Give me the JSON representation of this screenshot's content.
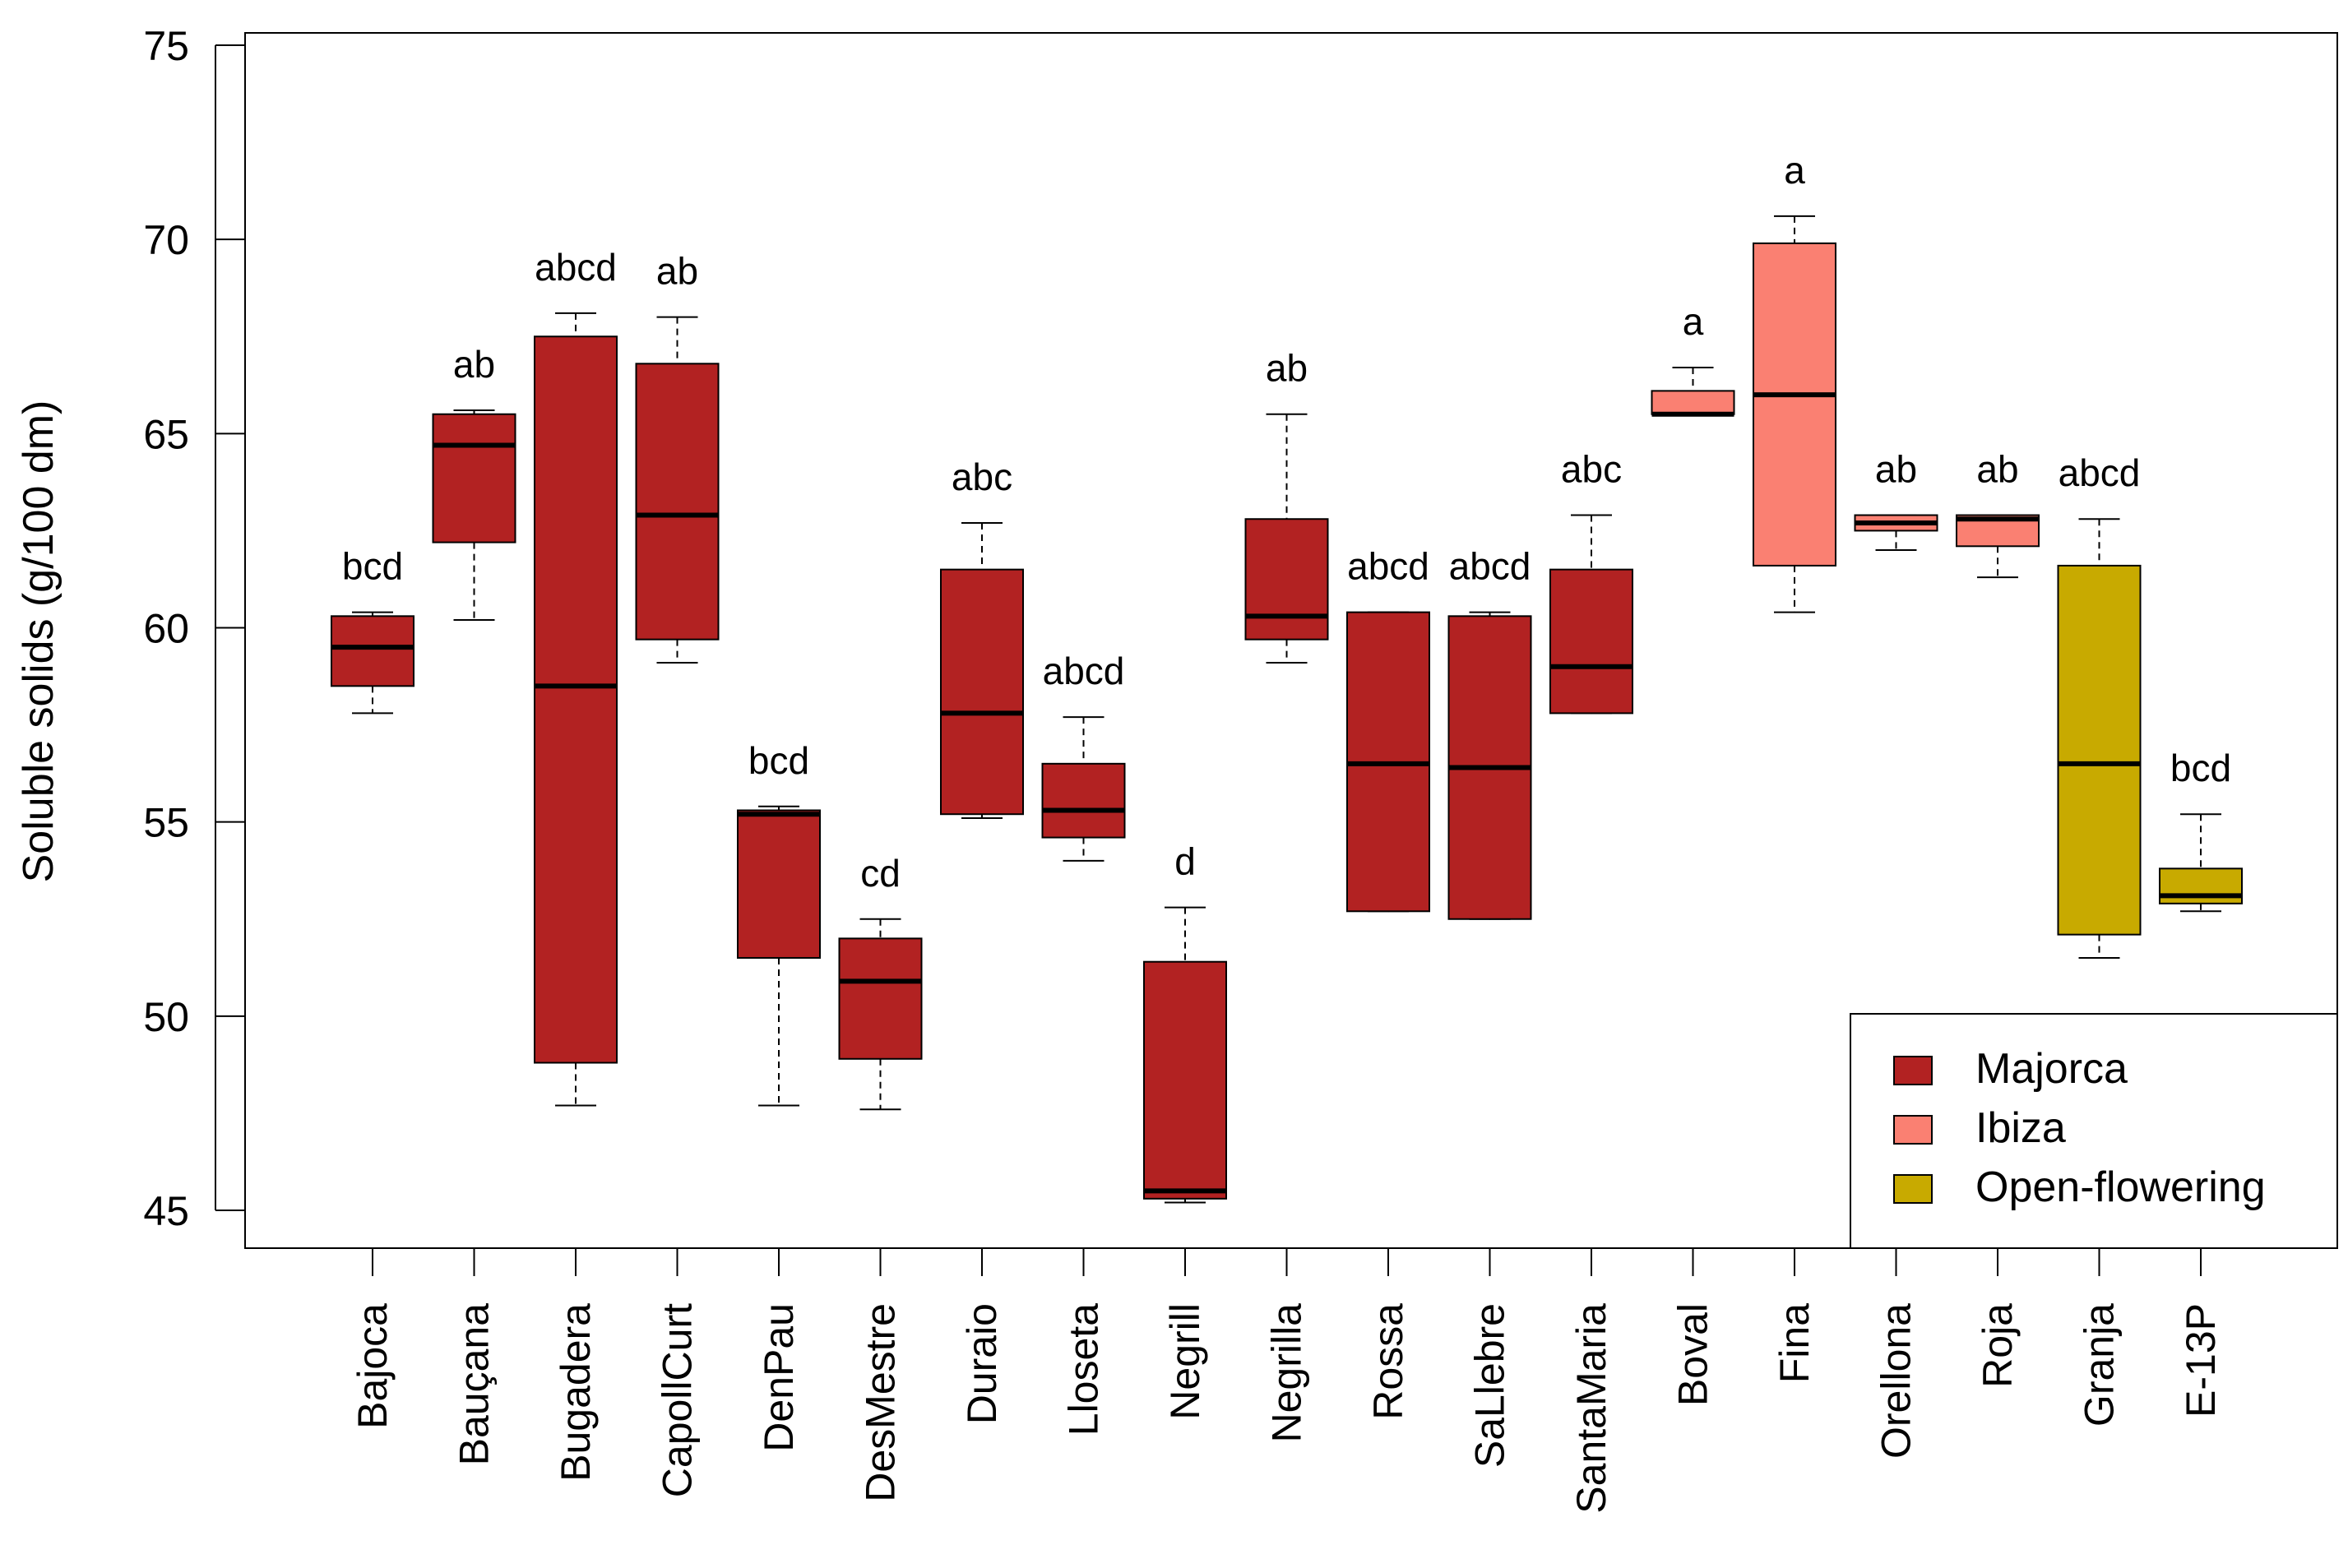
{
  "chart_data": {
    "type": "boxplot",
    "ylabel": "Soluble solids (g/100 dm)",
    "xlabel": "",
    "ylim": [
      45,
      75
    ],
    "yticks": [
      45,
      50,
      55,
      60,
      65,
      70,
      75
    ],
    "grid": false,
    "legend_position": "bottom-right",
    "groups": [
      {
        "name": "Majorca",
        "color": "#B22222"
      },
      {
        "name": "Ibiza",
        "color": "#FA8072"
      },
      {
        "name": "Open-flowering",
        "color": "#C8AA00"
      }
    ],
    "boxes": [
      {
        "label": "Bajoca",
        "group": "Majorca",
        "whisker_low": 57.8,
        "q1": 58.5,
        "median": 59.5,
        "q3": 60.3,
        "whisker_high": 60.4,
        "letter": "bcd"
      },
      {
        "label": "Bauçana",
        "group": "Majorca",
        "whisker_low": 60.2,
        "q1": 62.2,
        "median": 64.7,
        "q3": 65.5,
        "whisker_high": 65.6,
        "letter": "ab"
      },
      {
        "label": "Bugadera",
        "group": "Majorca",
        "whisker_low": 47.7,
        "q1": 48.8,
        "median": 58.5,
        "q3": 67.5,
        "whisker_high": 68.1,
        "letter": "abcd"
      },
      {
        "label": "CapollCurt",
        "group": "Majorca",
        "whisker_low": 59.1,
        "q1": 59.7,
        "median": 62.9,
        "q3": 66.8,
        "whisker_high": 68.0,
        "letter": "ab"
      },
      {
        "label": "DenPau",
        "group": "Majorca",
        "whisker_low": 47.7,
        "q1": 51.5,
        "median": 55.2,
        "q3": 55.3,
        "whisker_high": 55.4,
        "letter": "bcd"
      },
      {
        "label": "DesMestre",
        "group": "Majorca",
        "whisker_low": 47.6,
        "q1": 48.9,
        "median": 50.9,
        "q3": 52.0,
        "whisker_high": 52.5,
        "letter": "cd"
      },
      {
        "label": "Duraio",
        "group": "Majorca",
        "whisker_low": 55.1,
        "q1": 55.2,
        "median": 57.8,
        "q3": 61.5,
        "whisker_high": 62.7,
        "letter": "abc"
      },
      {
        "label": "Lloseta",
        "group": "Majorca",
        "whisker_low": 54.0,
        "q1": 54.6,
        "median": 55.3,
        "q3": 56.5,
        "whisker_high": 57.7,
        "letter": "abcd"
      },
      {
        "label": "Negrill",
        "group": "Majorca",
        "whisker_low": 45.2,
        "q1": 45.3,
        "median": 45.5,
        "q3": 51.4,
        "whisker_high": 52.8,
        "letter": "d"
      },
      {
        "label": "Negrilla",
        "group": "Majorca",
        "whisker_low": 59.1,
        "q1": 59.7,
        "median": 60.3,
        "q3": 62.8,
        "whisker_high": 65.5,
        "letter": "ab"
      },
      {
        "label": "Rossa",
        "group": "Majorca",
        "whisker_low": 52.7,
        "q1": 52.7,
        "median": 56.5,
        "q3": 60.4,
        "whisker_high": 60.4,
        "letter": "abcd"
      },
      {
        "label": "SaLlebre",
        "group": "Majorca",
        "whisker_low": 52.5,
        "q1": 52.5,
        "median": 56.4,
        "q3": 60.3,
        "whisker_high": 60.4,
        "letter": "abcd"
      },
      {
        "label": "SantaMaria",
        "group": "Majorca",
        "whisker_low": 57.8,
        "q1": 57.8,
        "median": 59.0,
        "q3": 61.5,
        "whisker_high": 62.9,
        "letter": "abc"
      },
      {
        "label": "Boval",
        "group": "Ibiza",
        "whisker_low": 65.5,
        "q1": 65.5,
        "median": 65.5,
        "q3": 66.1,
        "whisker_high": 66.7,
        "letter": "a"
      },
      {
        "label": "Fina",
        "group": "Ibiza",
        "whisker_low": 60.4,
        "q1": 61.6,
        "median": 66.0,
        "q3": 69.9,
        "whisker_high": 70.6,
        "letter": "a"
      },
      {
        "label": "Orellona",
        "group": "Ibiza",
        "whisker_low": 62.0,
        "q1": 62.5,
        "median": 62.7,
        "q3": 62.9,
        "whisker_high": 62.9,
        "letter": "ab"
      },
      {
        "label": "Roja",
        "group": "Ibiza",
        "whisker_low": 61.3,
        "q1": 62.1,
        "median": 62.8,
        "q3": 62.9,
        "whisker_high": 62.9,
        "letter": "ab"
      },
      {
        "label": "Granja",
        "group": "Open-flowering",
        "whisker_low": 51.5,
        "q1": 52.1,
        "median": 56.5,
        "q3": 61.6,
        "whisker_high": 62.8,
        "letter": "abcd"
      },
      {
        "label": "E-13P",
        "group": "Open-flowering",
        "whisker_low": 52.7,
        "q1": 52.9,
        "median": 53.1,
        "q3": 53.8,
        "whisker_high": 55.2,
        "letter": "bcd"
      }
    ]
  }
}
